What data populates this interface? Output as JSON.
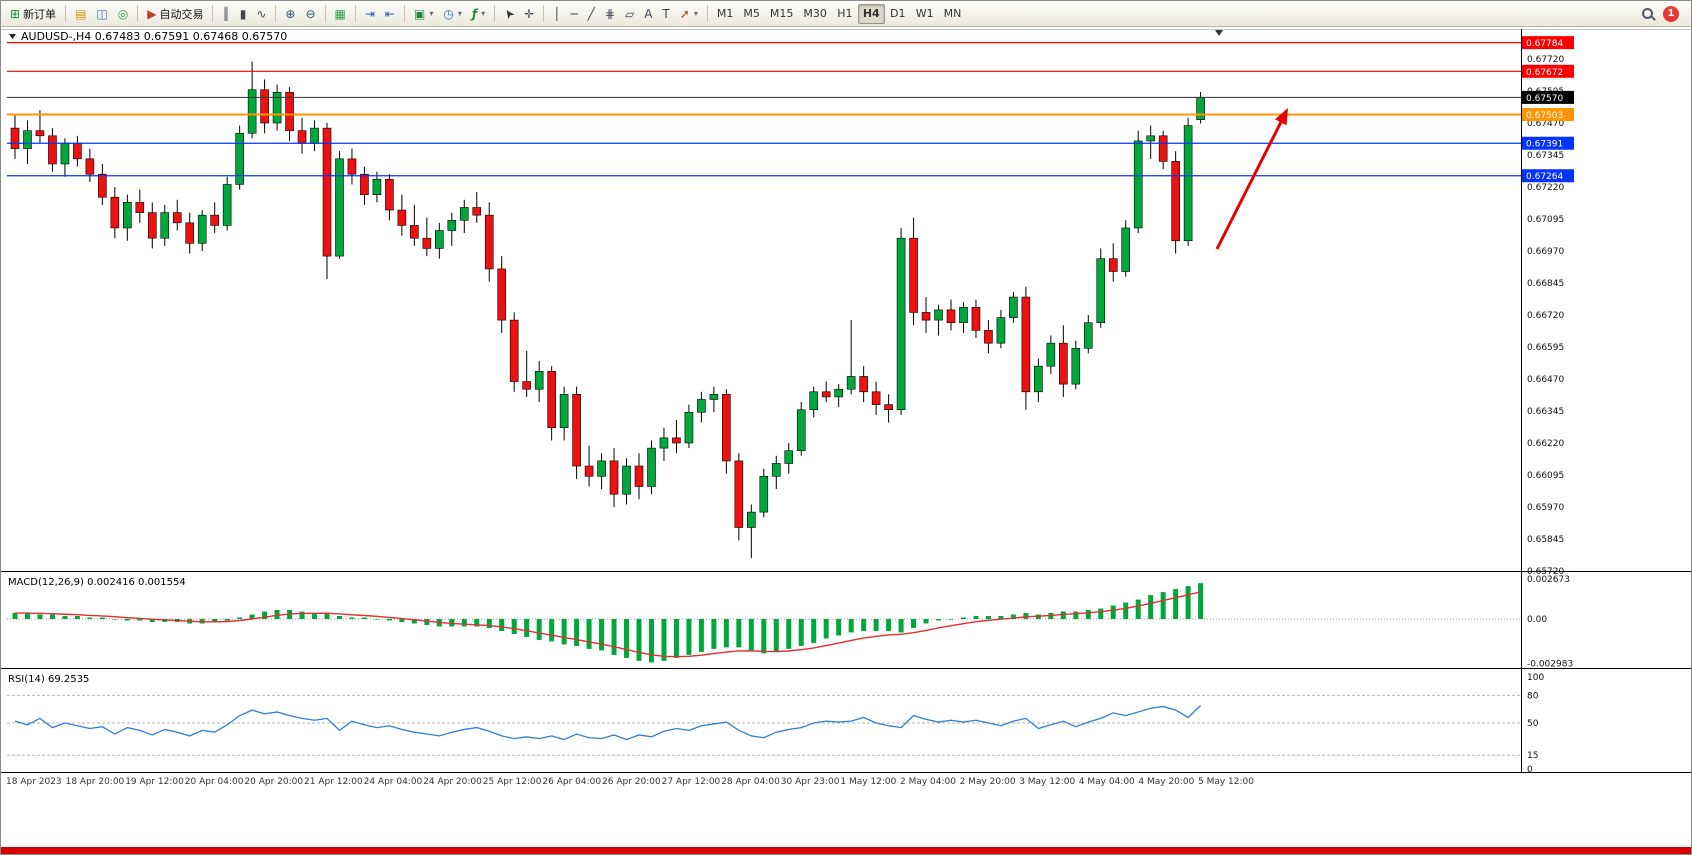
{
  "toolbar": {
    "badge_count": "1",
    "timeframes": [
      "M1",
      "M5",
      "M15",
      "M30",
      "H1",
      "H4",
      "D1",
      "W1",
      "MN"
    ],
    "active_timeframe": "H4",
    "groups": [
      [
        {
          "name": "new-order",
          "glyph": "⊞",
          "label": "新订单"
        }
      ],
      [
        {
          "name": "market-watch",
          "glyph": "▤"
        },
        {
          "name": "data-window",
          "glyph": "◫"
        },
        {
          "name": "navigator",
          "glyph": "◎"
        }
      ],
      [
        {
          "name": "autotrading",
          "glyph": "▶",
          "label": "自动交易"
        }
      ],
      [
        {
          "name": "bar-chart",
          "glyph": "║"
        },
        {
          "name": "candlestick-chart",
          "glyph": "▮"
        },
        {
          "name": "line-chart",
          "glyph": "∿"
        }
      ],
      [
        {
          "name": "zoom-in",
          "glyph": "⊕"
        },
        {
          "name": "zoom-out",
          "glyph": "⊖"
        }
      ],
      [
        {
          "name": "tile-windows",
          "glyph": "▦"
        }
      ],
      [
        {
          "name": "auto-scroll",
          "glyph": "⇥"
        },
        {
          "name": "chart-shift",
          "glyph": "⇤"
        }
      ],
      [
        {
          "name": "new-chart",
          "glyph": "▣",
          "caret": true
        },
        {
          "name": "period",
          "glyph": "◷",
          "caret": true
        },
        {
          "name": "indicators",
          "glyph": "ƒ",
          "caret": true
        }
      ],
      [
        {
          "name": "cursor",
          "glyph": "➤"
        },
        {
          "name": "crosshair",
          "glyph": "✛"
        }
      ],
      [
        {
          "name": "vertical-line",
          "glyph": "│"
        },
        {
          "name": "horizontal-line",
          "glyph": "─"
        },
        {
          "name": "trendline",
          "glyph": "╱"
        },
        {
          "name": "fibonacci",
          "glyph": "⋕"
        },
        {
          "name": "shapes",
          "glyph": "▱"
        },
        {
          "name": "text",
          "glyph": "A"
        },
        {
          "name": "text-label",
          "glyph": "T"
        },
        {
          "name": "arrows",
          "glyph": "➚",
          "caret": true
        }
      ]
    ]
  },
  "chart": {
    "title": "AUDUSD-,H4 0.67483 0.67591 0.67468 0.67570",
    "symbol": "AUDUSD-",
    "period": "H4",
    "ohlc": {
      "open": "0.67483",
      "high": "0.67591",
      "low": "0.67468",
      "close": "0.67570"
    },
    "current_price": "0.67570",
    "levels": [
      {
        "price": 0.67784,
        "label": "0.67784",
        "color": "#ff0000"
      },
      {
        "price": 0.67672,
        "label": "0.67672",
        "color": "#ff0000"
      },
      {
        "price": 0.67503,
        "label": "0.67503",
        "color": "#ff9500",
        "width": 2
      },
      {
        "price": 0.67391,
        "label": "0.67391",
        "color": "#0432ff"
      },
      {
        "price": 0.67264,
        "label": "0.67264",
        "color": "#0432ff"
      }
    ],
    "axis_ticks": [
      "0.67720",
      "0.67595",
      "0.67470",
      "0.67345",
      "0.67220",
      "0.67095",
      "0.66970",
      "0.66845",
      "0.66720",
      "0.66595",
      "0.66470",
      "0.66345",
      "0.66220",
      "0.66095",
      "0.65970",
      "0.65845",
      "0.65720"
    ],
    "time_labels": [
      "18 Apr 2023",
      "18 Apr 20:00",
      "19 Apr 12:00",
      "20 Apr 04:00",
      "20 Apr 20:00",
      "21 Apr 12:00",
      "24 Apr 04:00",
      "24 Apr 20:00",
      "25 Apr 12:00",
      "26 Apr 04:00",
      "26 Apr 20:00",
      "27 Apr 12:00",
      "28 Apr 04:00",
      "30 Apr 23:00",
      "1 May 12:00",
      "2 May 04:00",
      "2 May 20:00",
      "3 May 12:00",
      "4 May 04:00",
      "4 May 20:00",
      "5 May 12:00"
    ]
  },
  "chart_data": {
    "type": "candlestick",
    "symbol": "AUDUSD",
    "timeframe": "H4",
    "ylim": [
      0.6572,
      0.67784
    ],
    "candles": [
      [
        0.6745,
        0.675,
        0.6733,
        0.6737
      ],
      [
        0.6737,
        0.6748,
        0.6731,
        0.6744
      ],
      [
        0.6744,
        0.6752,
        0.6739,
        0.6742
      ],
      [
        0.6742,
        0.6745,
        0.6728,
        0.6731
      ],
      [
        0.6731,
        0.6741,
        0.6726,
        0.6739
      ],
      [
        0.6739,
        0.6742,
        0.673,
        0.6733
      ],
      [
        0.6733,
        0.6737,
        0.6724,
        0.6727
      ],
      [
        0.6727,
        0.6731,
        0.6715,
        0.6718
      ],
      [
        0.6718,
        0.6722,
        0.6702,
        0.6706
      ],
      [
        0.6706,
        0.6719,
        0.6701,
        0.6716
      ],
      [
        0.6716,
        0.6721,
        0.6708,
        0.6712
      ],
      [
        0.6712,
        0.6716,
        0.6698,
        0.6702
      ],
      [
        0.6702,
        0.6715,
        0.6699,
        0.6712
      ],
      [
        0.6712,
        0.6717,
        0.6705,
        0.6708
      ],
      [
        0.6708,
        0.6712,
        0.6696,
        0.67
      ],
      [
        0.67,
        0.6713,
        0.6697,
        0.6711
      ],
      [
        0.6711,
        0.6716,
        0.6704,
        0.6707
      ],
      [
        0.6707,
        0.6726,
        0.6705,
        0.6723
      ],
      [
        0.6723,
        0.6746,
        0.6721,
        0.6743
      ],
      [
        0.6743,
        0.6771,
        0.6741,
        0.676
      ],
      [
        0.676,
        0.6764,
        0.6743,
        0.6747
      ],
      [
        0.6747,
        0.6762,
        0.6744,
        0.6759
      ],
      [
        0.6759,
        0.6761,
        0.674,
        0.6744
      ],
      [
        0.6744,
        0.6749,
        0.6735,
        0.6739
      ],
      [
        0.6739,
        0.6748,
        0.6736,
        0.6745
      ],
      [
        0.6745,
        0.6747,
        0.6686,
        0.6695
      ],
      [
        0.6695,
        0.6736,
        0.6694,
        0.6733
      ],
      [
        0.6733,
        0.6737,
        0.6723,
        0.6727
      ],
      [
        0.6727,
        0.673,
        0.6715,
        0.6719
      ],
      [
        0.6719,
        0.6728,
        0.6716,
        0.6725
      ],
      [
        0.6725,
        0.6727,
        0.6709,
        0.6713
      ],
      [
        0.6713,
        0.6719,
        0.6703,
        0.6707
      ],
      [
        0.6707,
        0.6715,
        0.6699,
        0.6702
      ],
      [
        0.6702,
        0.671,
        0.6695,
        0.6698
      ],
      [
        0.6698,
        0.6708,
        0.6694,
        0.6705
      ],
      [
        0.6705,
        0.6712,
        0.6699,
        0.6709
      ],
      [
        0.6709,
        0.6717,
        0.6704,
        0.6714
      ],
      [
        0.6714,
        0.672,
        0.6708,
        0.6711
      ],
      [
        0.6711,
        0.6716,
        0.6685,
        0.669
      ],
      [
        0.669,
        0.6695,
        0.6665,
        0.667
      ],
      [
        0.667,
        0.6673,
        0.6642,
        0.6646
      ],
      [
        0.6646,
        0.6658,
        0.664,
        0.6643
      ],
      [
        0.6643,
        0.6654,
        0.6638,
        0.665
      ],
      [
        0.665,
        0.6652,
        0.6623,
        0.6628
      ],
      [
        0.6628,
        0.6644,
        0.6623,
        0.6641
      ],
      [
        0.6641,
        0.6644,
        0.6608,
        0.6613
      ],
      [
        0.6613,
        0.6621,
        0.6605,
        0.6609
      ],
      [
        0.6609,
        0.6618,
        0.6604,
        0.6615
      ],
      [
        0.6615,
        0.662,
        0.6597,
        0.6602
      ],
      [
        0.6602,
        0.6616,
        0.6598,
        0.6613
      ],
      [
        0.6613,
        0.6618,
        0.66,
        0.6605
      ],
      [
        0.6605,
        0.6623,
        0.6602,
        0.662
      ],
      [
        0.662,
        0.6628,
        0.6615,
        0.6624
      ],
      [
        0.6624,
        0.6631,
        0.6618,
        0.6622
      ],
      [
        0.6622,
        0.6637,
        0.662,
        0.6634
      ],
      [
        0.6634,
        0.6642,
        0.663,
        0.6639
      ],
      [
        0.6639,
        0.6644,
        0.6634,
        0.6641
      ],
      [
        0.6641,
        0.6643,
        0.661,
        0.6615
      ],
      [
        0.6615,
        0.6618,
        0.6584,
        0.6589
      ],
      [
        0.6589,
        0.6598,
        0.6577,
        0.6595
      ],
      [
        0.6595,
        0.6612,
        0.6593,
        0.6609
      ],
      [
        0.6609,
        0.6617,
        0.6604,
        0.6614
      ],
      [
        0.6614,
        0.6622,
        0.661,
        0.6619
      ],
      [
        0.6619,
        0.6638,
        0.6617,
        0.6635
      ],
      [
        0.6635,
        0.6644,
        0.6632,
        0.6642
      ],
      [
        0.6642,
        0.6646,
        0.6638,
        0.664
      ],
      [
        0.664,
        0.6645,
        0.6636,
        0.6643
      ],
      [
        0.6643,
        0.667,
        0.6641,
        0.6648
      ],
      [
        0.6648,
        0.6652,
        0.6638,
        0.6642
      ],
      [
        0.6642,
        0.6646,
        0.6633,
        0.6637
      ],
      [
        0.6637,
        0.6641,
        0.663,
        0.6635
      ],
      [
        0.6635,
        0.6706,
        0.6633,
        0.6702
      ],
      [
        0.6702,
        0.671,
        0.6668,
        0.6673
      ],
      [
        0.6673,
        0.6679,
        0.6665,
        0.667
      ],
      [
        0.667,
        0.6676,
        0.6664,
        0.6674
      ],
      [
        0.6674,
        0.6678,
        0.6666,
        0.6669
      ],
      [
        0.6669,
        0.6677,
        0.6665,
        0.6675
      ],
      [
        0.6675,
        0.6678,
        0.6663,
        0.6666
      ],
      [
        0.6666,
        0.667,
        0.6657,
        0.6661
      ],
      [
        0.6661,
        0.6674,
        0.6659,
        0.6671
      ],
      [
        0.6671,
        0.6681,
        0.6669,
        0.6679
      ],
      [
        0.6679,
        0.6683,
        0.6635,
        0.6642
      ],
      [
        0.6642,
        0.6655,
        0.6638,
        0.6652
      ],
      [
        0.6652,
        0.6664,
        0.6649,
        0.6661
      ],
      [
        0.6661,
        0.6668,
        0.664,
        0.6645
      ],
      [
        0.6645,
        0.6662,
        0.6643,
        0.6659
      ],
      [
        0.6659,
        0.6672,
        0.6657,
        0.6669
      ],
      [
        0.6669,
        0.6698,
        0.6667,
        0.6694
      ],
      [
        0.6694,
        0.67,
        0.6685,
        0.6689
      ],
      [
        0.6689,
        0.6709,
        0.6687,
        0.6706
      ],
      [
        0.6706,
        0.6744,
        0.6704,
        0.674
      ],
      [
        0.674,
        0.6746,
        0.6733,
        0.6742
      ],
      [
        0.6742,
        0.6744,
        0.6729,
        0.6732
      ],
      [
        0.6732,
        0.6736,
        0.6696,
        0.6701
      ],
      [
        0.6701,
        0.6749,
        0.6699,
        0.6746
      ],
      [
        0.67483,
        0.67591,
        0.67468,
        0.6757
      ]
    ],
    "macd": {
      "display": "MACD(12,26,9) 0.002416 0.001554",
      "label": "MACD(12,26,9)",
      "main_value": "0.002416",
      "signal_value": "0.001554",
      "axis": [
        "0.002673",
        "0.00",
        "-0.002983"
      ],
      "histogram": [
        0.0004,
        0.0004,
        0.0003,
        0.0003,
        0.0002,
        0.0002,
        0.0001,
        0.0001,
        0.0,
        -0.0001,
        -0.0001,
        -0.0002,
        -0.0002,
        -0.0002,
        -0.0003,
        -0.0003,
        -0.0002,
        -0.0001,
        0.0001,
        0.0003,
        0.0005,
        0.0006,
        0.0006,
        0.0005,
        0.0004,
        0.0004,
        0.0002,
        0.0001,
        0.0001,
        0.0,
        -0.0001,
        -0.0002,
        -0.0003,
        -0.0004,
        -0.0005,
        -0.0005,
        -0.0005,
        -0.0005,
        -0.0006,
        -0.0008,
        -0.001,
        -0.0012,
        -0.0014,
        -0.0015,
        -0.0017,
        -0.0018,
        -0.002,
        -0.0021,
        -0.0024,
        -0.0026,
        -0.0028,
        -0.0029,
        -0.0028,
        -0.0026,
        -0.0024,
        -0.0022,
        -0.002,
        -0.0019,
        -0.0019,
        -0.0021,
        -0.0023,
        -0.0022,
        -0.002,
        -0.0018,
        -0.0016,
        -0.0013,
        -0.0011,
        -0.0009,
        -0.0008,
        -0.0008,
        -0.0008,
        -0.0009,
        -0.0006,
        -0.0003,
        -0.0001,
        0.0,
        0.0001,
        0.0002,
        0.0002,
        0.0002,
        0.0003,
        0.0004,
        0.0003,
        0.0004,
        0.0005,
        0.0005,
        0.0006,
        0.0007,
        0.0009,
        0.0011,
        0.0013,
        0.0016,
        0.0018,
        0.002,
        0.0022,
        0.0024
      ]
    },
    "rsi": {
      "display": "RSI(14) 69.2535",
      "label": "RSI(14)",
      "value": "69.2535",
      "levels": [
        80,
        50,
        15
      ],
      "axis": [
        "100",
        "80",
        "50",
        "15",
        "0"
      ],
      "series": [
        52,
        48,
        55,
        45,
        50,
        47,
        44,
        46,
        38,
        45,
        42,
        37,
        43,
        40,
        36,
        42,
        40,
        48,
        58,
        64,
        60,
        62,
        58,
        55,
        53,
        55,
        42,
        52,
        48,
        45,
        47,
        43,
        40,
        38,
        36,
        40,
        43,
        45,
        41,
        36,
        33,
        35,
        33,
        36,
        32,
        38,
        34,
        33,
        37,
        32,
        37,
        35,
        41,
        44,
        42,
        47,
        49,
        51,
        42,
        36,
        34,
        40,
        43,
        45,
        50,
        52,
        51,
        52,
        56,
        50,
        47,
        45,
        58,
        54,
        51,
        53,
        51,
        53,
        50,
        47,
        52,
        55,
        44,
        48,
        52,
        46,
        51,
        55,
        61,
        58,
        62,
        66,
        68,
        64,
        56,
        69
      ]
    }
  },
  "colors": {
    "bull": "#00a83c",
    "bear": "#ee1111",
    "wick": "#000000",
    "macd_histogram": "#00a83c",
    "macd_signal": "#e03030",
    "rsi_line": "#2f7fd6",
    "current_price_bg": "#000000",
    "annotation_arrow": "#e60000",
    "bottom_bar": "#d60000"
  }
}
